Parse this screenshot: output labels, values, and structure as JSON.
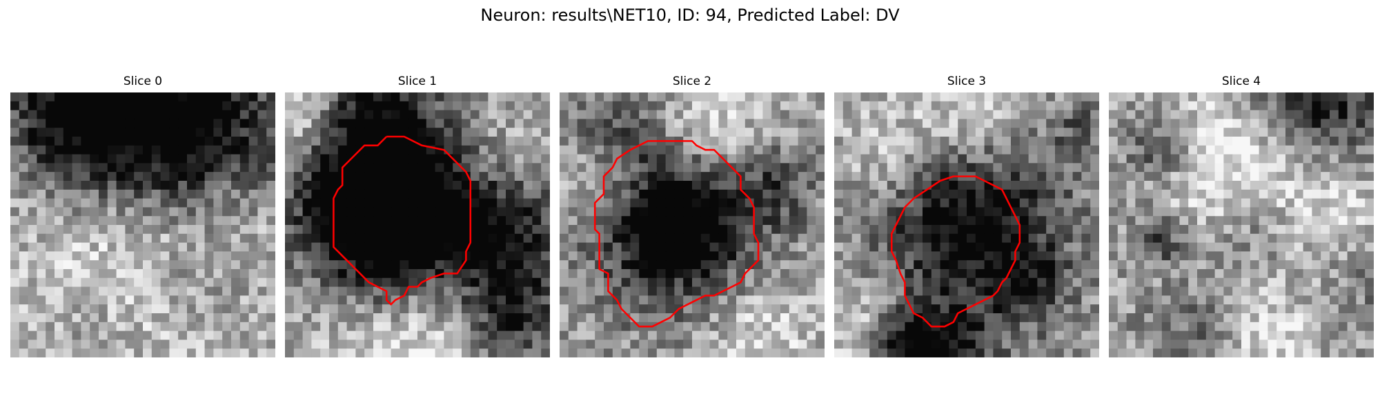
{
  "figure": {
    "title": "Neuron: results\\NET10, ID: 94, Predicted Label: DV"
  },
  "colors": {
    "contour": "#ff0000",
    "background": "#ffffff"
  },
  "slices": [
    {
      "title": "Slice 0",
      "dark_blobs": [
        [
          12,
          3,
          9,
          0.7
        ],
        [
          6,
          3,
          5,
          0.35
        ],
        [
          22,
          4,
          6,
          0.4
        ],
        [
          21,
          20,
          4,
          0.25
        ],
        [
          2,
          15,
          5,
          0.2
        ],
        [
          9,
          26,
          5,
          0.2
        ]
      ],
      "light_blobs": [
        [
          3,
          12,
          7,
          0.35
        ],
        [
          12,
          21,
          9,
          0.3
        ],
        [
          22,
          15,
          6,
          0.2
        ]
      ],
      "contour": []
    },
    {
      "title": "Slice 1",
      "dark_blobs": [
        [
          11,
          10,
          7,
          0.9
        ],
        [
          11,
          16,
          6,
          0.6
        ],
        [
          24,
          16,
          5,
          0.6
        ],
        [
          25,
          25,
          4,
          0.5
        ],
        [
          8,
          2,
          5,
          0.3
        ]
      ],
      "light_blobs": [
        [
          2,
          3,
          4,
          0.45
        ],
        [
          14,
          25,
          8,
          0.35
        ],
        [
          22,
          7,
          5,
          0.2
        ]
      ],
      "contour": [
        [
          11.5,
          5
        ],
        [
          13.5,
          5
        ],
        [
          15.5,
          6
        ],
        [
          18,
          6.5
        ],
        [
          19.5,
          8
        ],
        [
          20.5,
          9
        ],
        [
          21,
          10
        ],
        [
          21,
          17
        ],
        [
          20.5,
          18
        ],
        [
          20.5,
          19
        ],
        [
          19.5,
          20.5
        ],
        [
          18,
          20.5
        ],
        [
          16.5,
          21
        ],
        [
          15.5,
          21.5
        ],
        [
          15,
          22
        ],
        [
          14,
          22
        ],
        [
          13.5,
          23
        ],
        [
          12.5,
          23.5
        ],
        [
          12,
          24
        ],
        [
          11.5,
          23.5
        ],
        [
          11.5,
          22.5
        ],
        [
          10.5,
          22
        ],
        [
          9.5,
          21.5
        ],
        [
          8,
          20
        ],
        [
          6.5,
          18.5
        ],
        [
          5.5,
          17.5
        ],
        [
          5.5,
          12
        ],
        [
          6,
          11
        ],
        [
          6.5,
          10.5
        ],
        [
          6.5,
          8.5
        ],
        [
          7.5,
          7.5
        ],
        [
          9,
          6
        ],
        [
          10.5,
          6
        ],
        [
          11.5,
          5
        ]
      ]
    },
    {
      "title": "Slice 2",
      "dark_blobs": [
        [
          13,
          14,
          7,
          0.7
        ],
        [
          12,
          15,
          3,
          0.4
        ],
        [
          6,
          4,
          4,
          0.3
        ],
        [
          24,
          10,
          3,
          0.25
        ]
      ],
      "light_blobs": [
        [
          16,
          4,
          5,
          0.35
        ],
        [
          4,
          9,
          4,
          0.3
        ],
        [
          22,
          26,
          5,
          0.25
        ]
      ],
      "contour": [
        [
          8,
          6.5
        ],
        [
          10,
          5.5
        ],
        [
          15,
          5.5
        ],
        [
          15.5,
          6
        ],
        [
          16.5,
          6.5
        ],
        [
          17.5,
          6.5
        ],
        [
          18.5,
          7.5
        ],
        [
          19.5,
          8.5
        ],
        [
          20.5,
          9.5
        ],
        [
          20.5,
          11
        ],
        [
          21,
          11.5
        ],
        [
          21.5,
          12
        ],
        [
          22,
          13
        ],
        [
          22,
          16
        ],
        [
          22.5,
          17
        ],
        [
          22.5,
          19
        ],
        [
          21.5,
          20
        ],
        [
          21,
          20.5
        ],
        [
          20.5,
          21.5
        ],
        [
          19.5,
          22
        ],
        [
          18.5,
          22.5
        ],
        [
          17.5,
          23
        ],
        [
          16.5,
          23
        ],
        [
          15.5,
          23.5
        ],
        [
          14.5,
          24
        ],
        [
          13.5,
          24.5
        ],
        [
          12.5,
          25.5
        ],
        [
          11.5,
          26
        ],
        [
          10.5,
          26.5
        ],
        [
          9,
          26.5
        ],
        [
          8,
          25.5
        ],
        [
          7,
          24.5
        ],
        [
          6.5,
          23.5
        ],
        [
          5.5,
          22.5
        ],
        [
          5.5,
          20.5
        ],
        [
          4.5,
          20
        ],
        [
          4.5,
          16
        ],
        [
          4,
          15.5
        ],
        [
          4,
          12.5
        ],
        [
          5,
          11.5
        ],
        [
          5,
          9.5
        ],
        [
          6,
          8.5
        ],
        [
          6.5,
          7.5
        ],
        [
          8,
          6.5
        ]
      ]
    },
    {
      "title": "Slice 3",
      "dark_blobs": [
        [
          15,
          14,
          7,
          0.75
        ],
        [
          8,
          28,
          3,
          0.7
        ],
        [
          14,
          28,
          3,
          0.4
        ],
        [
          27,
          4,
          3,
          0.25
        ],
        [
          22,
          22,
          3,
          0.3
        ]
      ],
      "light_blobs": [
        [
          15,
          3,
          6,
          0.3
        ],
        [
          3,
          26,
          4,
          0.25
        ],
        [
          5,
          7,
          4,
          0.2
        ]
      ],
      "contour": [
        [
          10.5,
          11
        ],
        [
          12,
          10
        ],
        [
          13.5,
          9.5
        ],
        [
          16,
          9.5
        ],
        [
          17,
          10
        ],
        [
          18,
          10.5
        ],
        [
          19,
          11
        ],
        [
          19.5,
          12
        ],
        [
          20,
          13
        ],
        [
          20.5,
          14
        ],
        [
          21,
          15
        ],
        [
          21,
          17
        ],
        [
          20.5,
          18
        ],
        [
          20.5,
          19
        ],
        [
          20,
          20
        ],
        [
          19.5,
          21
        ],
        [
          19,
          21.5
        ],
        [
          18.5,
          22.5
        ],
        [
          18,
          23
        ],
        [
          17,
          23.5
        ],
        [
          16,
          24
        ],
        [
          15,
          24.5
        ],
        [
          14,
          25
        ],
        [
          13.5,
          26
        ],
        [
          12.5,
          26.5
        ],
        [
          11,
          26.5
        ],
        [
          10,
          25.5
        ],
        [
          9,
          25
        ],
        [
          8.5,
          24
        ],
        [
          8,
          23
        ],
        [
          8,
          21.5
        ],
        [
          7.5,
          20.5
        ],
        [
          7,
          19
        ],
        [
          6.5,
          18
        ],
        [
          6.5,
          16
        ],
        [
          7,
          15
        ],
        [
          7.5,
          14
        ],
        [
          8,
          13
        ],
        [
          9,
          12
        ],
        [
          10.5,
          11
        ]
      ]
    },
    {
      "title": "Slice 4",
      "dark_blobs": [
        [
          23,
          1,
          5,
          0.6
        ],
        [
          5,
          6,
          3,
          0.4
        ],
        [
          5,
          16,
          2,
          0.45
        ],
        [
          17,
          14,
          4,
          0.25
        ],
        [
          10,
          27,
          4,
          0.25
        ],
        [
          28,
          20,
          4,
          0.2
        ]
      ],
      "light_blobs": [
        [
          11,
          7,
          6,
          0.3
        ],
        [
          20,
          9,
          5,
          0.25
        ],
        [
          17,
          27,
          4,
          0.3
        ],
        [
          25,
          15,
          5,
          0.2
        ]
      ],
      "contour": []
    }
  ]
}
